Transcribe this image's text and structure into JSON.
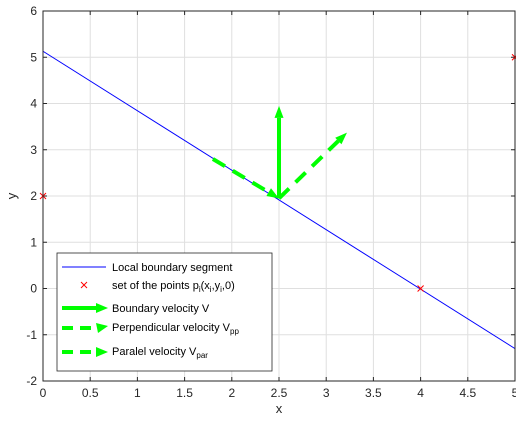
{
  "chart_data": {
    "type": "line",
    "title": "",
    "xlabel": "x",
    "ylabel": "y",
    "xlim": [
      0,
      5
    ],
    "ylim": [
      -2,
      6
    ],
    "xticks": [
      0,
      0.5,
      1,
      1.5,
      2,
      2.5,
      3,
      3.5,
      4,
      4.5,
      5
    ],
    "yticks": [
      -2,
      -1,
      0,
      1,
      2,
      3,
      4,
      5,
      6
    ],
    "xtick_labels": [
      "0",
      "0.5",
      "1",
      "1.5",
      "2",
      "2.5",
      "3",
      "3.5",
      "4",
      "4.5",
      "5"
    ],
    "ytick_labels": [
      "-2",
      "-1",
      "0",
      "1",
      "2",
      "3",
      "4",
      "5",
      "6"
    ],
    "grid": true,
    "legend_position": "bottom-left",
    "colors": {
      "boundary": "#0000ff",
      "points": "#ff0000",
      "velocity": "#00ff00",
      "grid": "#dfdfdf",
      "axes": "#262626"
    },
    "series": [
      {
        "id": "boundary",
        "type": "line",
        "name": "Local boundary segment",
        "x": [
          0,
          5
        ],
        "y": [
          5.13,
          -1.3
        ]
      },
      {
        "id": "points",
        "type": "scatter",
        "marker": "x",
        "name_prefix": "set of the points p",
        "name_sub1": "i",
        "name_mid1": "(x",
        "name_sub2": "i",
        "name_mid2": ",y",
        "name_sub3": "i",
        "name_suffix": ",0)",
        "x": [
          0,
          4,
          5
        ],
        "y": [
          2,
          0,
          5
        ]
      },
      {
        "id": "boundary-velocity",
        "type": "arrow",
        "name": "Boundary velocity V",
        "line_style": "solid",
        "x": [
          2.5,
          2.5
        ],
        "y": [
          1.95,
          3.95
        ]
      },
      {
        "id": "perpendicular-velocity",
        "type": "arrow",
        "name": "Perpendicular velocity V",
        "name_sub": "pp",
        "line_style": "dashed",
        "x": [
          1.8,
          2.5
        ],
        "y": [
          2.8,
          1.95
        ]
      },
      {
        "id": "parallel-velocity",
        "type": "arrow",
        "name": "Paralel velocity V",
        "name_sub": "par",
        "line_style": "dashed",
        "x": [
          2.5,
          3.22
        ],
        "y": [
          1.95,
          3.37
        ]
      }
    ]
  }
}
